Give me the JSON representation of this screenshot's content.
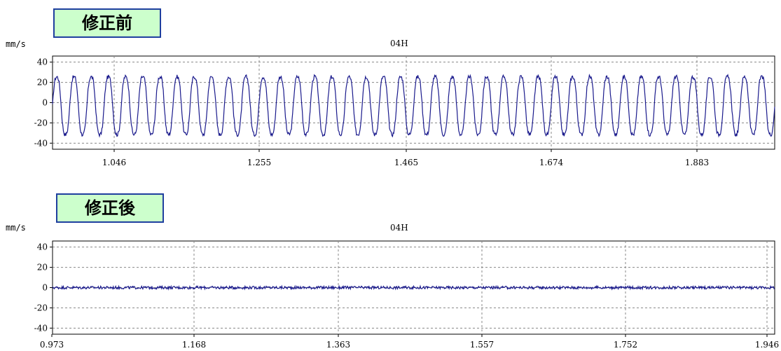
{
  "chart_data": [
    {
      "type": "line",
      "label": "修正前",
      "title": "04H",
      "ylabel": "mm/s",
      "yticks": [
        40,
        20,
        0,
        -20,
        -40
      ],
      "ylim": [
        -46,
        46
      ],
      "xlim": [
        0.973,
        1.946
      ],
      "xticks": [
        "1.046",
        "1.255",
        "1.465",
        "1.674",
        "1.883"
      ],
      "grid": true,
      "series": [
        {
          "amplitude": 31,
          "offset": -3,
          "cycles": 42,
          "noise": 2.0,
          "color": "#1a1a8c"
        }
      ]
    },
    {
      "type": "line",
      "label": "修正後",
      "title": "04H",
      "ylabel": "mm/s",
      "yticks": [
        40,
        20,
        0,
        -20,
        -40
      ],
      "ylim": [
        -46,
        46
      ],
      "xlim": [
        0.973,
        1.946
      ],
      "xticks": [
        "0.973",
        "1.168",
        "1.363",
        "1.557",
        "1.752",
        "1.946"
      ],
      "grid": true,
      "series": [
        {
          "amplitude": 0,
          "offset": 0,
          "cycles": 0,
          "noise": 1.4,
          "color": "#1a1a8c"
        }
      ]
    }
  ]
}
